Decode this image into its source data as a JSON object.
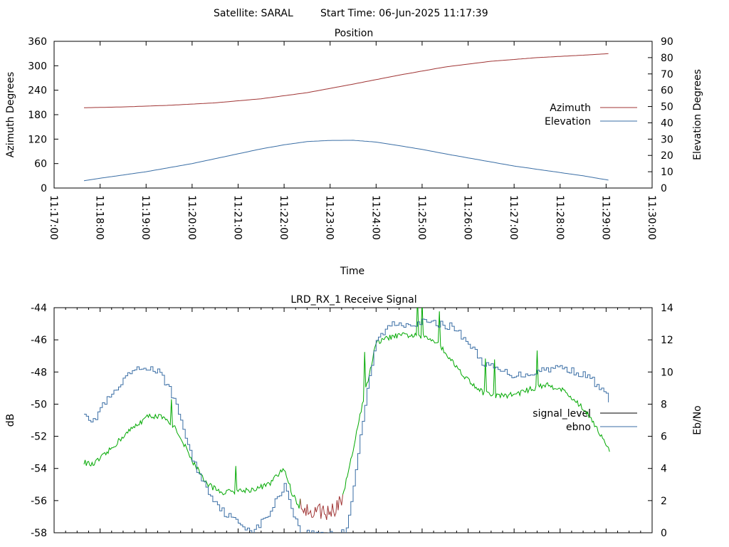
{
  "header": {
    "satellite_label": "Satellite: SARAL",
    "start_time_label": "Start Time: 06-Jun-2025 11:17:39"
  },
  "colors": {
    "azimuth": "#a03535",
    "elevation": "#3a6ea5",
    "signal_level": "#000000",
    "ebno": "#3a6ea5",
    "signal_green": "#00a800",
    "signal_red": "#a03535"
  },
  "chart_data": [
    {
      "type": "line",
      "title": "Position",
      "xlabel": "Time",
      "ylabel": "Azimuth Degrees",
      "y2label": "Elevation Degrees",
      "xlim": [
        "11:17:00",
        "11:30:00"
      ],
      "xticks": [
        "11:17:00",
        "11:18:00",
        "11:19:00",
        "11:20:00",
        "11:21:00",
        "11:22:00",
        "11:23:00",
        "11:24:00",
        "11:25:00",
        "11:26:00",
        "11:27:00",
        "11:28:00",
        "11:29:00",
        "11:30:00"
      ],
      "ylim": [
        0,
        360
      ],
      "yticks": [
        0,
        60,
        120,
        180,
        240,
        300,
        360
      ],
      "y2lim": [
        0,
        90
      ],
      "y2ticks": [
        0,
        10,
        20,
        30,
        40,
        50,
        60,
        70,
        80,
        90
      ],
      "legend_position": "right",
      "series": [
        {
          "name": "Azimuth",
          "axis": "left",
          "x": [
            "11:17:39",
            "11:18:30",
            "11:19:30",
            "11:20:30",
            "11:21:30",
            "11:22:30",
            "11:23:30",
            "11:24:30",
            "11:25:30",
            "11:26:30",
            "11:27:30",
            "11:28:30",
            "11:29:05"
          ],
          "values": [
            197,
            199,
            203,
            209,
            219,
            234,
            255,
            277,
            297,
            311,
            320,
            326,
            330
          ]
        },
        {
          "name": "Elevation",
          "axis": "right",
          "x": [
            "11:17:39",
            "11:18:00",
            "11:18:30",
            "11:19:00",
            "11:19:30",
            "11:20:00",
            "11:20:30",
            "11:21:00",
            "11:21:30",
            "11:22:00",
            "11:22:30",
            "11:23:00",
            "11:23:30",
            "11:24:00",
            "11:24:30",
            "11:25:00",
            "11:25:30",
            "11:26:00",
            "11:26:30",
            "11:27:00",
            "11:27:30",
            "11:28:00",
            "11:28:30",
            "11:29:05"
          ],
          "values": [
            4.5,
            6,
            8,
            10,
            12.5,
            15,
            18,
            21,
            24,
            26.5,
            28.5,
            29.2,
            29.3,
            28.2,
            26,
            23.7,
            21,
            18.5,
            16,
            13.5,
            11.5,
            9.5,
            7.5,
            4.7
          ]
        }
      ]
    },
    {
      "type": "line",
      "title": "LRD_RX_1 Receive Signal",
      "ylabel": "dB",
      "y2label": "Eb/No",
      "xlim": [
        "11:17:00",
        "11:30:00"
      ],
      "ylim": [
        -58,
        -44
      ],
      "yticks": [
        -58,
        -56,
        -54,
        -52,
        -50,
        -48,
        -46,
        -44
      ],
      "y2lim": [
        0,
        14
      ],
      "y2ticks": [
        0,
        2,
        4,
        6,
        8,
        10,
        12,
        14
      ],
      "legend_position": "right",
      "series": [
        {
          "name": "signal_level",
          "axis": "left",
          "x": [
            "11:17:39",
            "11:17:50",
            "11:18:10",
            "11:18:30",
            "11:18:50",
            "11:19:05",
            "11:19:20",
            "11:19:40",
            "11:20:00",
            "11:20:20",
            "11:20:40",
            "11:21:00",
            "11:21:20",
            "11:21:40",
            "11:22:00",
            "11:22:10",
            "11:22:20",
            "11:22:40",
            "11:23:00",
            "11:23:15",
            "11:23:25",
            "11:23:40",
            "11:24:00",
            "11:24:20",
            "11:24:40",
            "11:25:00",
            "11:25:20",
            "11:25:40",
            "11:26:00",
            "11:26:20",
            "11:26:40",
            "11:27:00",
            "11:27:20",
            "11:27:40",
            "11:28:00",
            "11:28:20",
            "11:28:40",
            "11:29:05"
          ],
          "values": [
            -53.6,
            -53.8,
            -53.0,
            -52.0,
            -51.2,
            -50.7,
            -50.8,
            -51.6,
            -53.5,
            -55.0,
            -55.5,
            -55.4,
            -55.3,
            -55.0,
            -54.0,
            -55.5,
            -56.4,
            -56.8,
            -56.6,
            -56.0,
            -54.0,
            -50.5,
            -46.2,
            -45.8,
            -45.7,
            -45.8,
            -46.1,
            -47.4,
            -48.5,
            -49.3,
            -49.5,
            -49.4,
            -49.1,
            -48.8,
            -49.0,
            -49.8,
            -50.8,
            -53.0
          ]
        },
        {
          "name": "ebno",
          "axis": "right",
          "x": [
            "11:17:39",
            "11:17:50",
            "11:18:00",
            "11:18:20",
            "11:18:40",
            "11:19:00",
            "11:19:15",
            "11:19:30",
            "11:19:45",
            "11:20:00",
            "11:20:20",
            "11:20:40",
            "11:21:00",
            "11:21:20",
            "11:21:40",
            "11:22:00",
            "11:22:10",
            "11:22:20",
            "11:23:20",
            "11:23:30",
            "11:23:45",
            "11:24:00",
            "11:24:20",
            "11:24:40",
            "11:25:00",
            "11:25:20",
            "11:25:40",
            "11:26:00",
            "11:26:20",
            "11:26:40",
            "11:27:00",
            "11:27:20",
            "11:27:40",
            "11:28:00",
            "11:28:20",
            "11:28:40",
            "11:29:05"
          ],
          "values": [
            7.6,
            6.8,
            7.8,
            8.8,
            10.0,
            10.3,
            10.0,
            9.0,
            7.0,
            4.5,
            2.6,
            1.3,
            0.6,
            0.1,
            1.2,
            3.0,
            1.5,
            0.0,
            0.0,
            3.0,
            8.0,
            12.0,
            13.0,
            13.0,
            13.1,
            13.0,
            12.8,
            11.8,
            10.5,
            10.1,
            9.8,
            9.9,
            10.2,
            10.3,
            10.0,
            9.6,
            8.2
          ]
        }
      ]
    }
  ]
}
